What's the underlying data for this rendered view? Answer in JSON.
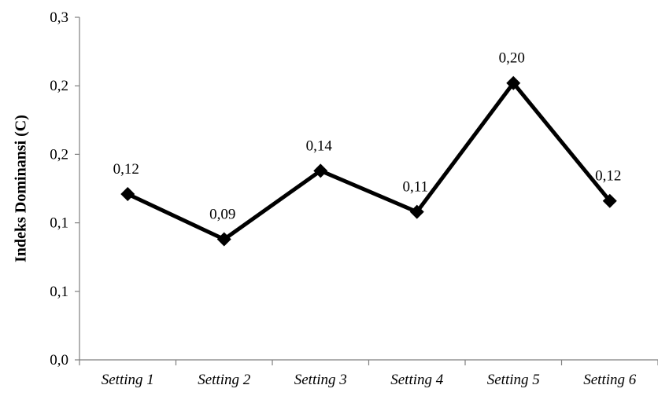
{
  "chart_data": {
    "type": "line",
    "categories": [
      "Setting 1",
      "Setting 2",
      "Setting 3",
      "Setting 4",
      "Setting 5",
      "Setting 6"
    ],
    "values": [
      0.121,
      0.088,
      0.138,
      0.108,
      0.202,
      0.116
    ],
    "data_labels": [
      "0,12",
      "0,09",
      "0,14",
      "0,11",
      "0,20",
      "0,12"
    ],
    "ylabel": "Indeks Dominansi  (C)",
    "xlabel": "",
    "ylim": [
      0,
      0.25
    ],
    "y_tick_values": [
      0,
      0.05,
      0.1,
      0.15,
      0.2,
      0.25
    ],
    "y_tick_labels": [
      "0,0",
      "0,1",
      "0,1",
      "0,2",
      "0,2",
      "0,3"
    ],
    "grid": false,
    "legend": "none",
    "line_color": "#000000",
    "marker": "diamond"
  }
}
